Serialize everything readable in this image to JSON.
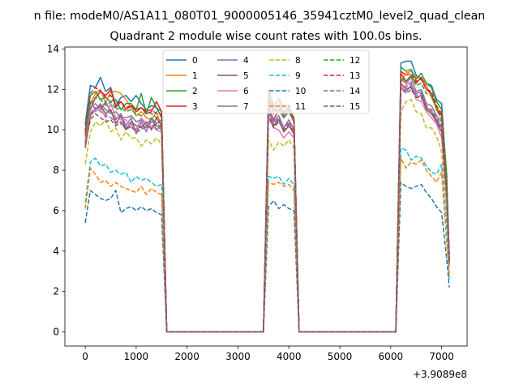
{
  "figure": {
    "suptitle": "n file: modeM0/AS1A11_080T01_9000005146_35941cztM0_level2_quad_clean"
  },
  "chart_data": {
    "type": "line",
    "title": "Quadrant 2 module wise count rates with 100.0s bins.",
    "xlabel": "",
    "ylabel": "",
    "x_offset_label": "+3.9089e8",
    "xlim": [
      -400,
      7500
    ],
    "ylim": [
      -0.7,
      14.1
    ],
    "xticks": [
      0,
      1000,
      2000,
      3000,
      4000,
      5000,
      6000,
      7000
    ],
    "yticks": [
      0,
      2,
      4,
      6,
      8,
      10,
      12,
      14
    ],
    "legend": {
      "placement": "top-center",
      "columns": 4
    },
    "grid": false,
    "x": [
      0,
      100,
      200,
      300,
      400,
      500,
      600,
      700,
      800,
      900,
      1000,
      1100,
      1200,
      1300,
      1400,
      1500,
      1600,
      3500,
      3600,
      3700,
      3800,
      3900,
      4000,
      4100,
      4200,
      4300,
      6100,
      6200,
      6300,
      6400,
      6500,
      6600,
      6700,
      6800,
      6900,
      7000,
      7100,
      7150
    ],
    "series": [
      {
        "name": "0",
        "color": "#1f77b4",
        "style": "solid",
        "values": [
          10.3,
          12.2,
          12.1,
          12.6,
          11.9,
          12.1,
          11.2,
          11.6,
          11.7,
          11.4,
          11.7,
          11.3,
          11.0,
          11.2,
          11.1,
          10.6,
          0,
          0,
          12.0,
          11.2,
          11.5,
          10.8,
          11.2,
          10.5,
          0,
          0,
          0,
          13.3,
          13.4,
          13.4,
          12.7,
          12.5,
          12.3,
          12.2,
          11.5,
          11.3,
          7.5,
          3.8
        ]
      },
      {
        "name": "1",
        "color": "#ff7f0e",
        "style": "solid",
        "values": [
          9.6,
          11.3,
          11.8,
          12.0,
          11.3,
          11.9,
          11.9,
          11.8,
          11.5,
          11.1,
          10.7,
          10.9,
          10.6,
          10.5,
          10.9,
          10.1,
          0,
          0,
          11.4,
          10.9,
          11.6,
          11.1,
          10.9,
          10.6,
          0,
          0,
          0,
          12.4,
          12.8,
          12.9,
          12.6,
          12.6,
          12.2,
          11.6,
          11.1,
          10.7,
          6.0,
          3.5
        ]
      },
      {
        "name": "2",
        "color": "#2ca02c",
        "style": "solid",
        "values": [
          10.2,
          11.7,
          11.9,
          11.5,
          11.6,
          11.4,
          11.5,
          11.0,
          11.3,
          11.3,
          11.0,
          11.8,
          10.8,
          11.6,
          11.1,
          10.9,
          0,
          0,
          11.6,
          11.0,
          11.2,
          10.9,
          11.0,
          10.5,
          0,
          0,
          0,
          13.1,
          12.9,
          13.0,
          12.5,
          12.8,
          12.3,
          12.1,
          11.4,
          11.0,
          7.8,
          3.3
        ]
      },
      {
        "name": "3",
        "color": "#d62728",
        "style": "solid",
        "values": [
          9.8,
          11.0,
          11.6,
          11.9,
          11.7,
          12.0,
          11.1,
          11.4,
          11.0,
          11.2,
          10.9,
          11.1,
          10.8,
          10.9,
          11.4,
          10.9,
          0,
          0,
          11.1,
          10.5,
          11.0,
          10.6,
          10.9,
          10.4,
          0,
          0,
          0,
          12.8,
          12.4,
          12.7,
          12.3,
          12.6,
          12.0,
          11.8,
          11.0,
          10.7,
          6.5,
          3.6
        ]
      },
      {
        "name": "4",
        "color": "#9467bd",
        "style": "solid",
        "values": [
          9.4,
          11.1,
          11.3,
          11.0,
          11.4,
          10.9,
          10.5,
          10.8,
          10.2,
          10.6,
          9.8,
          10.4,
          9.9,
          10.6,
          10.3,
          10.5,
          0,
          0,
          11.3,
          10.4,
          10.7,
          10.1,
          10.5,
          10.0,
          0,
          0,
          0,
          12.1,
          11.9,
          12.2,
          11.8,
          11.9,
          11.1,
          10.9,
          10.5,
          10.1,
          6.8,
          3.4
        ]
      },
      {
        "name": "5",
        "color": "#8c564b",
        "style": "solid",
        "values": [
          9.1,
          10.7,
          11.0,
          11.2,
          10.8,
          11.0,
          10.3,
          10.7,
          10.0,
          10.4,
          10.2,
          10.1,
          10.4,
          10.0,
          10.6,
          10.2,
          0,
          0,
          11.0,
          10.2,
          10.5,
          9.9,
          10.2,
          9.8,
          0,
          0,
          0,
          12.3,
          12.0,
          12.1,
          11.6,
          11.7,
          11.0,
          10.8,
          10.4,
          9.9,
          6.9,
          3.5
        ]
      },
      {
        "name": "6",
        "color": "#e377c2",
        "style": "solid",
        "values": [
          9.5,
          11.0,
          10.9,
          11.1,
          10.6,
          11.3,
          10.6,
          10.5,
          10.5,
          10.1,
          10.0,
          10.6,
          10.3,
          10.2,
          10.0,
          9.9,
          0,
          0,
          10.6,
          10.1,
          10.0,
          9.6,
          9.9,
          9.6,
          0,
          0,
          0,
          12.0,
          12.2,
          12.4,
          11.5,
          11.4,
          10.9,
          10.6,
          10.3,
          9.6,
          6.3,
          3.7
        ]
      },
      {
        "name": "7",
        "color": "#7f7f7f",
        "style": "solid",
        "values": [
          10.0,
          11.4,
          11.0,
          11.3,
          11.0,
          10.8,
          10.9,
          10.6,
          10.6,
          10.7,
          10.4,
          10.5,
          10.2,
          10.6,
          10.0,
          10.3,
          0,
          0,
          11.8,
          11.0,
          11.2,
          10.7,
          11.1,
          10.5,
          0,
          0,
          0,
          12.5,
          12.3,
          12.6,
          11.9,
          12.0,
          11.3,
          11.2,
          10.7,
          10.4,
          7.0,
          3.6
        ]
      },
      {
        "name": "8",
        "color": "#bcbd22",
        "style": "dashed",
        "values": [
          8.3,
          9.9,
          10.4,
          10.2,
          10.5,
          9.9,
          10.1,
          9.5,
          9.9,
          9.6,
          9.6,
          9.2,
          9.5,
          9.3,
          9.6,
          9.3,
          0,
          0,
          9.5,
          9.0,
          9.4,
          9.2,
          9.5,
          9.1,
          0,
          0,
          0,
          10.9,
          11.4,
          11.5,
          10.9,
          10.8,
          10.1,
          10.1,
          9.7,
          8.9,
          6.1,
          3.2
        ]
      },
      {
        "name": "9",
        "color": "#17becf",
        "style": "dashed",
        "values": [
          6.4,
          8.4,
          8.6,
          8.2,
          8.3,
          7.9,
          8.0,
          7.8,
          7.9,
          7.4,
          7.7,
          7.5,
          7.6,
          7.4,
          7.2,
          7.3,
          0,
          0,
          7.7,
          7.6,
          7.7,
          7.3,
          7.6,
          7.3,
          0,
          0,
          0,
          9.1,
          9.0,
          8.5,
          8.7,
          8.6,
          8.2,
          7.9,
          7.8,
          8.3,
          5.2,
          2.6
        ]
      },
      {
        "name": "10",
        "color": "#1f77b4",
        "style": "dashed",
        "values": [
          5.4,
          7.0,
          6.8,
          6.6,
          6.5,
          6.6,
          7.0,
          5.9,
          6.1,
          6.2,
          6.0,
          6.2,
          6.0,
          6.1,
          5.9,
          5.8,
          0,
          0,
          6.2,
          6.5,
          6.1,
          6.3,
          6.1,
          6.0,
          0,
          0,
          0,
          7.4,
          7.2,
          7.1,
          7.2,
          7.3,
          6.9,
          6.6,
          6.2,
          5.9,
          3.6,
          2.2
        ]
      },
      {
        "name": "11",
        "color": "#ff7f0e",
        "style": "dashed",
        "values": [
          6.1,
          8.1,
          7.8,
          7.4,
          7.5,
          7.2,
          7.4,
          7.2,
          7.1,
          7.0,
          6.9,
          7.2,
          6.8,
          7.1,
          6.9,
          6.8,
          0,
          0,
          7.4,
          7.3,
          7.4,
          7.2,
          7.3,
          7.0,
          0,
          0,
          0,
          8.6,
          8.1,
          8.4,
          8.3,
          8.5,
          8.0,
          7.7,
          7.4,
          7.9,
          4.4,
          2.8
        ]
      },
      {
        "name": "12",
        "color": "#2ca02c",
        "style": "dashed",
        "values": [
          9.7,
          11.3,
          11.6,
          11.5,
          11.2,
          11.4,
          11.0,
          11.1,
          10.9,
          11.0,
          10.8,
          10.7,
          10.9,
          10.8,
          10.6,
          10.7,
          0,
          0,
          11.3,
          10.8,
          11.0,
          10.6,
          10.9,
          10.4,
          0,
          0,
          0,
          12.6,
          12.4,
          12.7,
          12.2,
          12.3,
          11.8,
          11.7,
          11.0,
          10.5,
          7.3,
          3.9
        ]
      },
      {
        "name": "13",
        "color": "#d62728",
        "style": "dashed",
        "values": [
          9.9,
          11.8,
          12.1,
          11.9,
          11.6,
          11.7,
          11.3,
          11.4,
          11.1,
          11.2,
          11.0,
          11.1,
          10.9,
          11.0,
          10.8,
          10.8,
          0,
          0,
          11.5,
          10.9,
          11.1,
          10.8,
          11.0,
          10.6,
          0,
          0,
          0,
          12.9,
          12.7,
          12.8,
          12.4,
          12.5,
          12.0,
          11.9,
          11.2,
          10.8,
          7.1,
          3.7
        ]
      },
      {
        "name": "14",
        "color": "#9467bd",
        "style": "dashed",
        "values": [
          9.2,
          10.8,
          11.1,
          10.9,
          10.7,
          10.6,
          10.4,
          10.3,
          10.1,
          10.3,
          10.0,
          10.2,
          10.1,
          10.4,
          10.2,
          10.0,
          0,
          0,
          10.9,
          10.3,
          10.6,
          10.1,
          10.4,
          9.9,
          0,
          0,
          0,
          12.2,
          12.1,
          12.3,
          11.7,
          11.8,
          11.2,
          11.0,
          10.6,
          10.2,
          6.6,
          3.4
        ]
      },
      {
        "name": "15",
        "color": "#8c564b",
        "style": "dashed",
        "values": [
          9.3,
          10.5,
          10.8,
          10.6,
          10.4,
          10.5,
          10.2,
          10.4,
          10.0,
          10.2,
          9.9,
          10.0,
          10.2,
          10.1,
          10.3,
          10.1,
          0,
          0,
          10.7,
          10.1,
          10.4,
          10.0,
          10.3,
          9.8,
          0,
          0,
          0,
          12.1,
          11.8,
          12.0,
          11.6,
          11.6,
          11.1,
          10.9,
          10.4,
          10.0,
          6.7,
          3.5
        ]
      }
    ]
  }
}
